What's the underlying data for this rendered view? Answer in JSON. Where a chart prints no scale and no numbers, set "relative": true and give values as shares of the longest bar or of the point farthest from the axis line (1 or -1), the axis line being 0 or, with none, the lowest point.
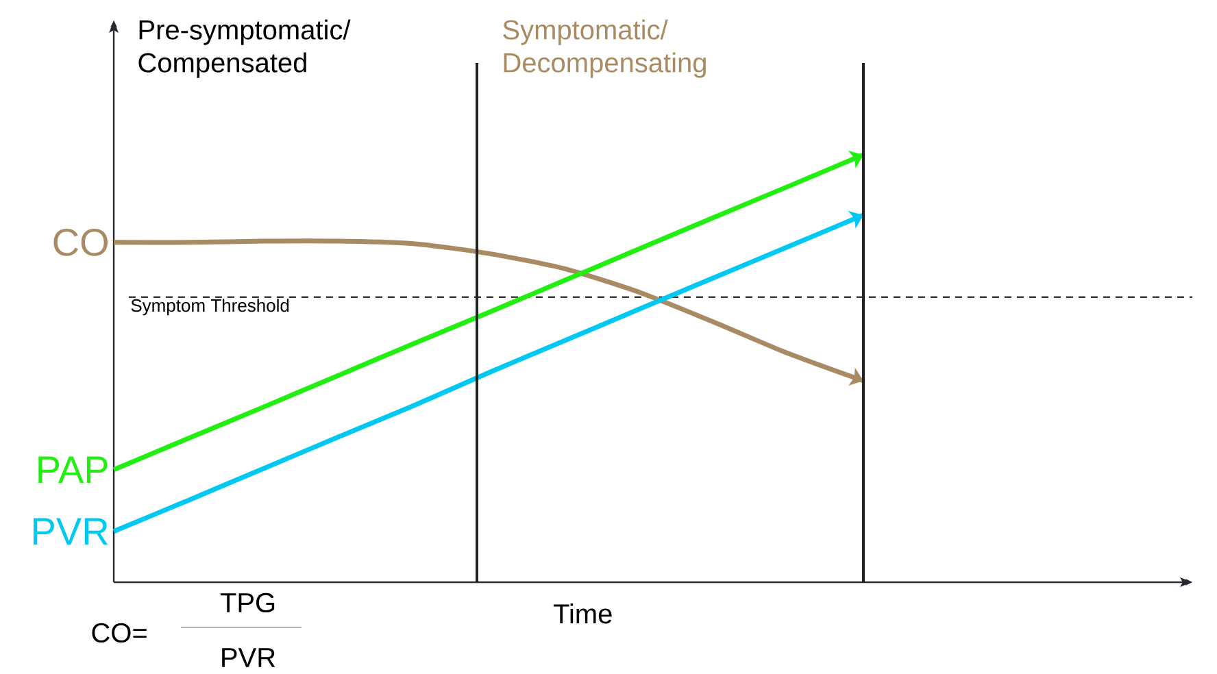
{
  "chart_data": {
    "type": "line",
    "relative": true,
    "xlabel": "Time",
    "categories": [
      null,
      null,
      null,
      null,
      null,
      null,
      null,
      null,
      null,
      null,
      null
    ],
    "series": [
      {
        "name": "CO",
        "color": "#a88a63",
        "values": [
          0.795,
          0.795,
          0.798,
          0.798,
          0.792,
          0.769,
          0.734,
          0.679,
          0.609,
          0.535,
          0.471
        ]
      },
      {
        "name": "PAP",
        "color": "#22ee11",
        "values": [
          0.263,
          0.337,
          0.41,
          0.484,
          0.558,
          0.631,
          0.705,
          0.779,
          0.853,
          0.926,
          1.0
        ]
      },
      {
        "name": "PVR",
        "color": "#00c8f0",
        "values": [
          0.119,
          0.192,
          0.266,
          0.34,
          0.413,
          0.49,
          0.564,
          0.638,
          0.712,
          0.785,
          0.859
        ]
      }
    ],
    "ref_lines": [
      {
        "axis": "y",
        "value": 0.667,
        "label": "Symptom Threshold",
        "line_style": "dashed",
        "color": "#000000"
      }
    ],
    "annotations": [
      "Pre-symptomatic/ Compensated",
      "Symptomatic/ Decompensating",
      "CO=",
      "TPG",
      "PVR"
    ],
    "legend": false
  }
}
